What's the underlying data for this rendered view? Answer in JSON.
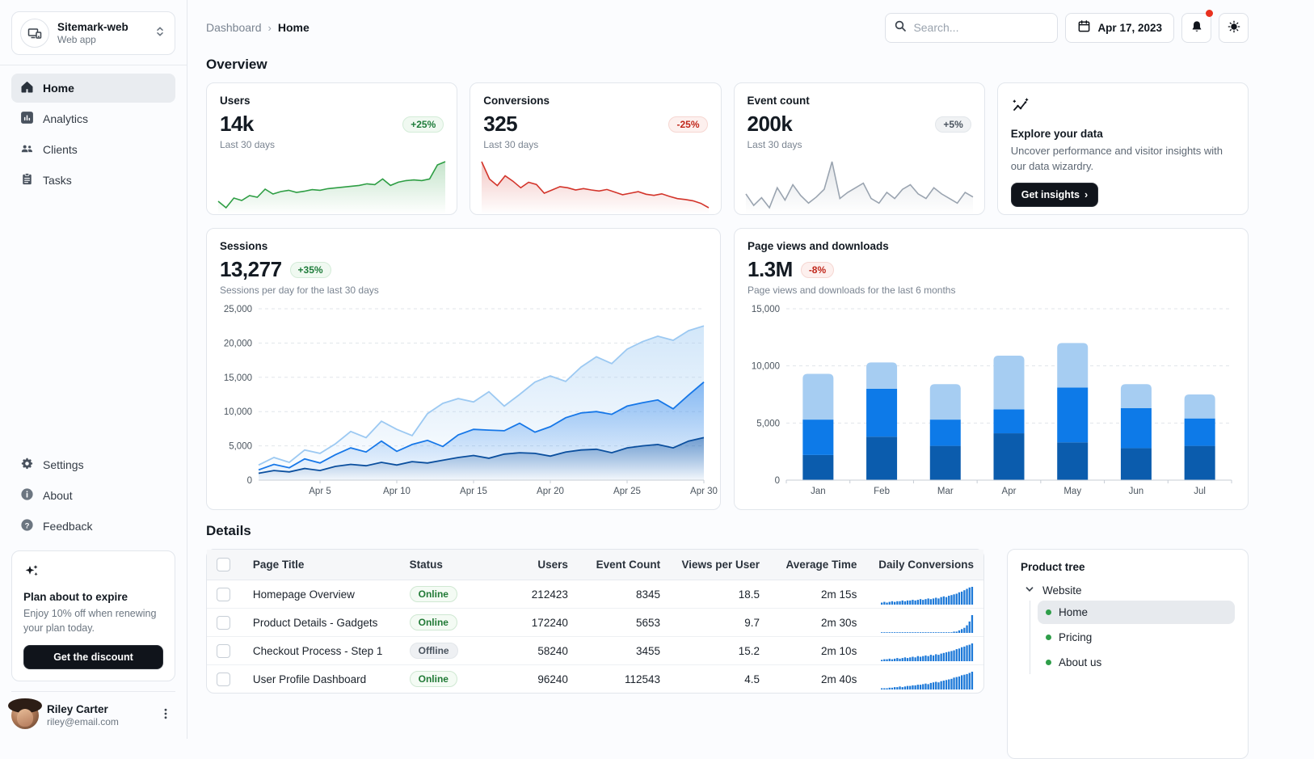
{
  "app": {
    "name": "Sitemark-web",
    "type": "Web app"
  },
  "topbar": {
    "breadcrumb": {
      "root": "Dashboard",
      "current": "Home"
    },
    "search_placeholder": "Search...",
    "date": "Apr 17, 2023"
  },
  "sidebar": {
    "nav": [
      {
        "label": "Home",
        "active": true
      },
      {
        "label": "Analytics",
        "active": false
      },
      {
        "label": "Clients",
        "active": false
      },
      {
        "label": "Tasks",
        "active": false
      }
    ],
    "secondary": [
      {
        "label": "Settings"
      },
      {
        "label": "About"
      },
      {
        "label": "Feedback"
      }
    ],
    "promo": {
      "title": "Plan about to expire",
      "body": "Enjoy 10% off when renewing your plan today.",
      "button": "Get the discount"
    },
    "user": {
      "name": "Riley Carter",
      "email": "riley@email.com"
    }
  },
  "overview": {
    "heading": "Overview",
    "stats": [
      {
        "title": "Users",
        "value": "14k",
        "delta": "+25%",
        "trend": "up",
        "caption": "Last 30 days"
      },
      {
        "title": "Conversions",
        "value": "325",
        "delta": "-25%",
        "trend": "down",
        "caption": "Last 30 days"
      },
      {
        "title": "Event count",
        "value": "200k",
        "delta": "+5%",
        "trend": "neutral",
        "caption": "Last 30 days"
      }
    ],
    "explore": {
      "title": "Explore your data",
      "body": "Uncover performance and visitor insights with our data wizardry.",
      "button": "Get insights"
    }
  },
  "sessions_card": {
    "title": "Sessions",
    "value": "13,277",
    "delta": "+35%",
    "caption": "Sessions per day for the last 30 days"
  },
  "pageviews_card": {
    "title": "Page views and downloads",
    "value": "1.3M",
    "delta": "-8%",
    "caption": "Page views and downloads for the last 6 months"
  },
  "details": {
    "heading": "Details",
    "columns": [
      "Page Title",
      "Status",
      "Users",
      "Event Count",
      "Views per User",
      "Average Time",
      "Daily Conversions"
    ],
    "rows": [
      {
        "title": "Homepage Overview",
        "status": "Online",
        "users": "212423",
        "events": "8345",
        "views": "18.5",
        "time": "2m 15s"
      },
      {
        "title": "Product Details - Gadgets",
        "status": "Online",
        "users": "172240",
        "events": "5653",
        "views": "9.7",
        "time": "2m 30s"
      },
      {
        "title": "Checkout Process - Step 1",
        "status": "Offline",
        "users": "58240",
        "events": "3455",
        "views": "15.2",
        "time": "2m 10s"
      },
      {
        "title": "User Profile Dashboard",
        "status": "Online",
        "users": "96240",
        "events": "112543",
        "views": "4.5",
        "time": "2m 40s"
      }
    ],
    "tree": {
      "title": "Product tree",
      "root": "Website",
      "children": [
        {
          "label": "Home",
          "selected": true
        },
        {
          "label": "Pricing",
          "selected": false
        },
        {
          "label": "About us",
          "selected": false
        }
      ]
    }
  },
  "colors": {
    "positive": "#2e9e44",
    "negative": "#d3342a",
    "neutral": "#9aa4b0",
    "bar_dark": "#0b5cad",
    "bar_mid": "#0d7ae8",
    "bar_light": "#a6cdf2",
    "spark_table": "#1d79d8",
    "notification_dot": "#e9311f"
  },
  "chart_data": [
    {
      "id": "users_spark",
      "type": "area",
      "color": "#2e9e44",
      "values": [
        200,
        160,
        220,
        205,
        235,
        225,
        275,
        245,
        260,
        268,
        255,
        262,
        272,
        268,
        278,
        283,
        288,
        293,
        298,
        308,
        303,
        338,
        298,
        318,
        328,
        332,
        328,
        338,
        425,
        445
      ]
    },
    {
      "id": "conversions_spark",
      "type": "area",
      "color": "#d3342a",
      "values": [
        460,
        380,
        350,
        395,
        370,
        340,
        365,
        355,
        315,
        330,
        345,
        340,
        330,
        336,
        330,
        325,
        332,
        320,
        308,
        315,
        322,
        310,
        305,
        312,
        300,
        290,
        286,
        280,
        268,
        248
      ]
    },
    {
      "id": "events_spark",
      "type": "area",
      "color": "#9aa4b0",
      "values": [
        220,
        205,
        215,
        202,
        228,
        212,
        232,
        218,
        208,
        216,
        226,
        262,
        214,
        222,
        228,
        234,
        214,
        208,
        222,
        214,
        226,
        232,
        220,
        214,
        228,
        220,
        214,
        208,
        222,
        216
      ]
    },
    {
      "id": "sessions",
      "type": "area",
      "title": "Sessions per day for the last 30 days",
      "ylim": [
        0,
        25000
      ],
      "y_ticks": [
        0,
        5000,
        10000,
        15000,
        20000,
        25000
      ],
      "x_tick_indices": [
        4,
        9,
        14,
        19,
        24,
        29
      ],
      "x_tick_labels": [
        "Apr 5",
        "Apr 10",
        "Apr 15",
        "Apr 20",
        "Apr 25",
        "Apr 30"
      ],
      "grid": "dashed-horizontal",
      "legend": "none",
      "series": [
        {
          "name": "upper",
          "color": "#9cc9f2",
          "values": [
            2200,
            3300,
            2600,
            4400,
            3900,
            5300,
            7100,
            6200,
            8600,
            7400,
            6500,
            9700,
            11200,
            11900,
            11400,
            12900,
            10800,
            12500,
            14300,
            15200,
            14400,
            16500,
            18000,
            17000,
            19100,
            20200,
            21000,
            20400,
            21800,
            22500
          ]
        },
        {
          "name": "middle",
          "color": "#1677e8",
          "values": [
            1500,
            2300,
            1800,
            3100,
            2500,
            3700,
            4700,
            4100,
            5700,
            4200,
            5200,
            5800,
            4900,
            6600,
            7400,
            7300,
            7200,
            8300,
            7000,
            7800,
            9100,
            9800,
            10000,
            9600,
            10800,
            11300,
            11700,
            10400,
            12400,
            14300
          ]
        },
        {
          "name": "lower",
          "color": "#0b4f9e",
          "values": [
            1000,
            1400,
            1200,
            1700,
            1400,
            2000,
            2300,
            2100,
            2600,
            2200,
            2700,
            2500,
            2900,
            3300,
            3600,
            3200,
            3800,
            4000,
            3900,
            3500,
            4100,
            4400,
            4500,
            4000,
            4700,
            5000,
            5200,
            4700,
            5700,
            6200
          ]
        }
      ]
    },
    {
      "id": "pageviews",
      "type": "bar",
      "categories": [
        "Jan",
        "Feb",
        "Mar",
        "Apr",
        "May",
        "Jun",
        "Jul"
      ],
      "ylim": [
        0,
        15000
      ],
      "y_ticks": [
        0,
        5000,
        10000,
        15000
      ],
      "grid": "dashed-horizontal",
      "legend": "none",
      "stacked": true,
      "series": [
        {
          "name": "bottom",
          "color": "#0b5cad",
          "values": [
            2200,
            3800,
            3000,
            4100,
            3300,
            2800,
            3000
          ]
        },
        {
          "name": "middle",
          "color": "#0d7ae8",
          "values": [
            3100,
            4200,
            2300,
            2100,
            4800,
            3500,
            2400
          ]
        },
        {
          "name": "top",
          "color": "#a6cdf2",
          "values": [
            4000,
            2300,
            3100,
            4700,
            3900,
            2100,
            2100
          ]
        }
      ]
    },
    {
      "id": "daily_conversions",
      "type": "sparkbars",
      "color": "#1d79d8",
      "rows": [
        [
          3,
          4,
          3,
          4,
          5,
          4,
          5,
          5,
          6,
          5,
          6,
          6,
          7,
          6,
          7,
          8,
          7,
          8,
          9,
          8,
          9,
          10,
          9,
          11,
          12,
          11,
          13,
          14,
          15,
          16,
          18,
          19,
          21,
          23,
          25,
          26
        ],
        [
          0,
          0,
          0,
          0,
          0,
          0,
          0,
          0,
          0,
          0,
          0,
          0,
          0,
          0,
          0,
          0,
          0,
          0,
          0,
          0,
          0,
          0,
          0,
          0,
          0,
          0,
          0,
          0,
          1,
          1,
          2,
          3,
          4,
          6,
          9,
          14
        ],
        [
          2,
          3,
          3,
          4,
          3,
          4,
          5,
          4,
          5,
          6,
          5,
          6,
          7,
          6,
          8,
          7,
          8,
          9,
          8,
          10,
          9,
          11,
          10,
          12,
          13,
          14,
          15,
          16,
          17,
          19,
          20,
          22,
          23,
          25,
          26,
          28
        ],
        [
          1,
          2,
          2,
          3,
          3,
          4,
          4,
          5,
          4,
          5,
          6,
          6,
          7,
          7,
          8,
          8,
          9,
          10,
          9,
          11,
          12,
          13,
          12,
          14,
          15,
          16,
          17,
          18,
          20,
          21,
          22,
          24,
          25,
          26,
          28,
          30
        ]
      ]
    }
  ]
}
